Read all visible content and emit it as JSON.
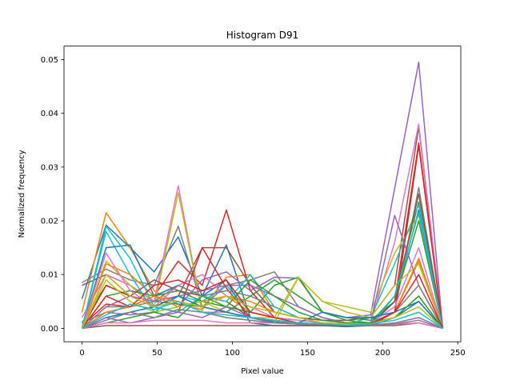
{
  "chart_data": {
    "type": "line",
    "title": "Histogram D91",
    "xlabel": "Pixel value",
    "ylabel": "Normalized frequency",
    "xlim": [
      -12,
      252
    ],
    "ylim": [
      -0.0025,
      0.0525
    ],
    "xticks": [
      0,
      50,
      100,
      150,
      200,
      250
    ],
    "yticks": [
      0.0,
      0.01,
      0.02,
      0.03,
      0.04,
      0.05
    ],
    "xtick_labels": [
      "0",
      "50",
      "100",
      "150",
      "200",
      "250"
    ],
    "ytick_labels": [
      "0.00",
      "0.01",
      "0.02",
      "0.03",
      "0.04",
      "0.05"
    ],
    "grid": false,
    "legend": "none",
    "x": [
      0,
      16,
      32,
      48,
      64,
      80,
      96,
      112,
      128,
      144,
      160,
      176,
      192,
      208,
      224,
      240
    ],
    "series": [
      {
        "color": "#1f77b4",
        "values": [
          0.0055,
          0.0192,
          0.015,
          0.0105,
          0.017,
          0.006,
          0.0155,
          0.002,
          0.0012,
          0.0008,
          0.0005,
          0.0004,
          0.0006,
          0.005,
          0.022,
          0.0
        ]
      },
      {
        "color": "#ff7f0e",
        "values": [
          0.003,
          0.0215,
          0.015,
          0.007,
          0.0045,
          0.0035,
          0.0095,
          0.01,
          0.003,
          0.002,
          0.0015,
          0.001,
          0.0008,
          0.003,
          0.013,
          0.0
        ]
      },
      {
        "color": "#2ca02c",
        "values": [
          0.001,
          0.008,
          0.006,
          0.005,
          0.0045,
          0.004,
          0.003,
          0.006,
          0.009,
          0.006,
          0.003,
          0.0015,
          0.001,
          0.006,
          0.0235,
          0.0
        ]
      },
      {
        "color": "#d62728",
        "values": [
          0.0005,
          0.0045,
          0.004,
          0.006,
          0.0125,
          0.008,
          0.022,
          0.007,
          0.002,
          0.0015,
          0.001,
          0.0008,
          0.001,
          0.005,
          0.0345,
          0.0
        ]
      },
      {
        "color": "#9467bd",
        "values": [
          0.001,
          0.003,
          0.0025,
          0.003,
          0.004,
          0.009,
          0.0105,
          0.007,
          0.0095,
          0.0093,
          0.003,
          0.002,
          0.0025,
          0.026,
          0.0495,
          0.0
        ]
      },
      {
        "color": "#8c564b",
        "values": [
          0.008,
          0.01,
          0.008,
          0.005,
          0.006,
          0.015,
          0.015,
          0.008,
          0.003,
          0.002,
          0.0015,
          0.0015,
          0.002,
          0.008,
          0.0375,
          0.0
        ]
      },
      {
        "color": "#e377c2",
        "values": [
          0.002,
          0.01,
          0.008,
          0.005,
          0.0265,
          0.003,
          0.003,
          0.002,
          0.0015,
          0.001,
          0.0008,
          0.0006,
          0.001,
          0.016,
          0.038,
          0.0
        ]
      },
      {
        "color": "#7f7f7f",
        "values": [
          0.0085,
          0.011,
          0.009,
          0.008,
          0.019,
          0.004,
          0.008,
          0.009,
          0.0105,
          0.004,
          0.002,
          0.001,
          0.001,
          0.003,
          0.0262,
          0.0
        ]
      },
      {
        "color": "#bcbd22",
        "values": [
          0.0,
          0.0125,
          0.008,
          0.004,
          0.0252,
          0.003,
          0.002,
          0.0015,
          0.001,
          0.0095,
          0.005,
          0.004,
          0.003,
          0.014,
          0.021,
          0.0
        ]
      },
      {
        "color": "#17becf",
        "values": [
          0.0,
          0.018,
          0.01,
          0.003,
          0.006,
          0.005,
          0.008,
          0.003,
          0.002,
          0.0015,
          0.001,
          0.0008,
          0.002,
          0.012,
          0.023,
          0.0
        ]
      },
      {
        "color": "#1f77b4",
        "values": [
          0.0,
          0.015,
          0.0155,
          0.006,
          0.008,
          0.006,
          0.009,
          0.001,
          0.0005,
          0.0005,
          0.0005,
          0.0003,
          0.0005,
          0.002,
          0.005,
          0.0
        ]
      },
      {
        "color": "#ff7f0e",
        "values": [
          0.0,
          0.012,
          0.01,
          0.006,
          0.004,
          0.005,
          0.006,
          0.003,
          0.002,
          0.001,
          0.0006,
          0.0005,
          0.0005,
          0.003,
          0.0125,
          0.0
        ]
      },
      {
        "color": "#2ca02c",
        "values": [
          0.0,
          0.006,
          0.007,
          0.006,
          0.007,
          0.005,
          0.004,
          0.003,
          0.008,
          0.0095,
          0.003,
          0.002,
          0.0015,
          0.005,
          0.02,
          0.0
        ]
      },
      {
        "color": "#d62728",
        "values": [
          0.0,
          0.008,
          0.006,
          0.004,
          0.003,
          0.015,
          0.0075,
          0.002,
          0.001,
          0.0008,
          0.0006,
          0.0005,
          0.0006,
          0.003,
          0.034,
          0.0
        ]
      },
      {
        "color": "#9467bd",
        "values": [
          0.0,
          0.004,
          0.006,
          0.005,
          0.006,
          0.007,
          0.008,
          0.008,
          0.006,
          0.004,
          0.002,
          0.001,
          0.001,
          0.021,
          0.008,
          0.0
        ]
      },
      {
        "color": "#8c564b",
        "values": [
          0.0,
          0.01,
          0.006,
          0.009,
          0.007,
          0.006,
          0.005,
          0.002,
          0.0015,
          0.001,
          0.0008,
          0.0006,
          0.001,
          0.005,
          0.025,
          0.0
        ]
      },
      {
        "color": "#e377c2",
        "values": [
          0.0,
          0.014,
          0.007,
          0.004,
          0.008,
          0.01,
          0.006,
          0.004,
          0.002,
          0.0015,
          0.001,
          0.0008,
          0.001,
          0.004,
          0.015,
          0.0
        ]
      },
      {
        "color": "#7f7f7f",
        "values": [
          0.0,
          0.004,
          0.004,
          0.005,
          0.008,
          0.006,
          0.007,
          0.006,
          0.004,
          0.002,
          0.001,
          0.0008,
          0.001,
          0.003,
          0.008,
          0.0
        ]
      },
      {
        "color": "#bcbd22",
        "values": [
          0.0,
          0.009,
          0.005,
          0.003,
          0.004,
          0.005,
          0.003,
          0.002,
          0.002,
          0.0095,
          0.005,
          0.003,
          0.002,
          0.008,
          0.012,
          0.0
        ]
      },
      {
        "color": "#17becf",
        "values": [
          0.0,
          0.019,
          0.013,
          0.004,
          0.003,
          0.006,
          0.005,
          0.01,
          0.004,
          0.002,
          0.001,
          0.0005,
          0.0005,
          0.006,
          0.0215,
          0.0
        ]
      },
      {
        "color": "#1f77b4",
        "values": [
          0.0,
          0.002,
          0.003,
          0.004,
          0.006,
          0.004,
          0.003,
          0.002,
          0.0015,
          0.001,
          0.003,
          0.002,
          0.002,
          0.003,
          0.005,
          0.0
        ]
      },
      {
        "color": "#ff7f0e",
        "values": [
          0.0,
          0.003,
          0.004,
          0.006,
          0.005,
          0.004,
          0.006,
          0.005,
          0.003,
          0.002,
          0.001,
          0.0008,
          0.001,
          0.002,
          0.006,
          0.0
        ]
      },
      {
        "color": "#2ca02c",
        "values": [
          0.0,
          0.001,
          0.002,
          0.003,
          0.002,
          0.006,
          0.004,
          0.009,
          0.006,
          0.003,
          0.0015,
          0.001,
          0.001,
          0.002,
          0.006,
          0.0
        ]
      },
      {
        "color": "#d62728",
        "values": [
          0.0,
          0.006,
          0.004,
          0.008,
          0.009,
          0.007,
          0.009,
          0.003,
          0.002,
          0.001,
          0.0008,
          0.0006,
          0.0008,
          0.003,
          0.01,
          0.0
        ]
      },
      {
        "color": "#9467bd",
        "values": [
          0.0,
          0.002,
          0.001,
          0.002,
          0.003,
          0.002,
          0.004,
          0.002,
          0.001,
          0.0008,
          0.0006,
          0.0005,
          0.0006,
          0.001,
          0.002,
          0.0
        ]
      },
      {
        "color": "#8c564b",
        "values": [
          0.0,
          0.0005,
          0.0005,
          0.0005,
          0.0005,
          0.0005,
          0.0005,
          0.0005,
          0.0005,
          0.0005,
          0.0005,
          0.0005,
          0.0005,
          0.0005,
          0.001,
          0.0
        ]
      },
      {
        "color": "#e377c2",
        "values": [
          0.0,
          0.001,
          0.001,
          0.0015,
          0.0015,
          0.0015,
          0.001,
          0.001,
          0.001,
          0.0008,
          0.0008,
          0.0006,
          0.0006,
          0.0008,
          0.001,
          0.0
        ]
      },
      {
        "color": "#7f7f7f",
        "values": [
          0.0,
          0.0015,
          0.003,
          0.002,
          0.0035,
          0.003,
          0.002,
          0.0015,
          0.001,
          0.0008,
          0.0007,
          0.0006,
          0.0006,
          0.0008,
          0.0015,
          0.0
        ]
      },
      {
        "color": "#bcbd22",
        "values": [
          0.0,
          0.01,
          0.006,
          0.004,
          0.005,
          0.004,
          0.006,
          0.004,
          0.003,
          0.002,
          0.001,
          0.0008,
          0.0008,
          0.002,
          0.004,
          0.0
        ]
      },
      {
        "color": "#17becf",
        "values": [
          0.0,
          0.0025,
          0.0045,
          0.0035,
          0.005,
          0.003,
          0.0025,
          0.002,
          0.0015,
          0.001,
          0.0008,
          0.0006,
          0.0008,
          0.0015,
          0.003,
          0.0
        ]
      }
    ]
  }
}
